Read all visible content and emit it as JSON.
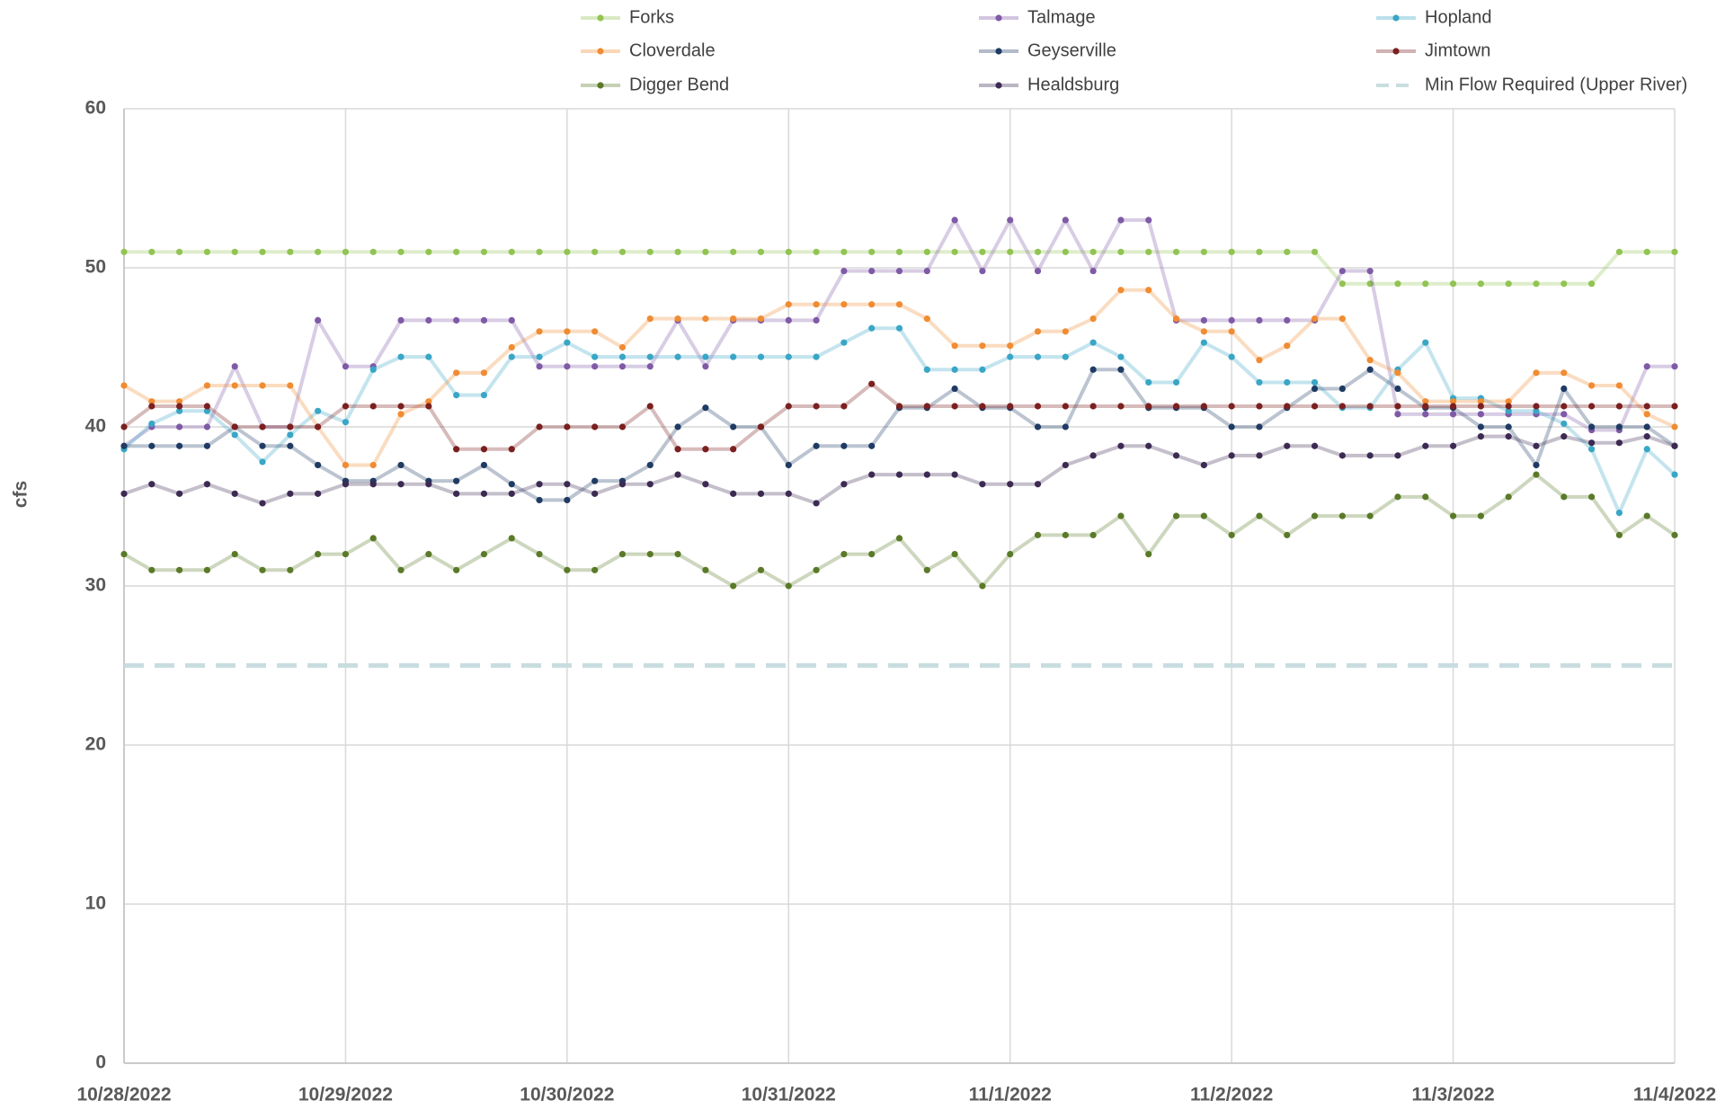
{
  "chart_data": {
    "type": "line",
    "y_label": "cfs",
    "categories": [
      "10/28/2022",
      null,
      null,
      null,
      null,
      null,
      null,
      null,
      "10/29/2022",
      null,
      null,
      null,
      null,
      null,
      null,
      null,
      "10/30/2022",
      null,
      null,
      null,
      null,
      null,
      null,
      null,
      "10/31/2022",
      null,
      null,
      null,
      null,
      null,
      null,
      null,
      "11/1/2022",
      null,
      null,
      null,
      null,
      null,
      null,
      null,
      "11/2/2022",
      null,
      null,
      null,
      null,
      null,
      null,
      null,
      "11/3/2022",
      null,
      null,
      null,
      null,
      null,
      null,
      null,
      "11/4/2022"
    ],
    "ylim": [
      0,
      60
    ],
    "yticks": [
      0,
      10,
      20,
      30,
      40,
      50,
      60
    ],
    "grid": true,
    "legend": "top",
    "series": [
      {
        "name": "Forks",
        "color": "#92c353",
        "values": [
          51,
          51,
          51,
          51,
          51,
          51,
          51,
          51,
          51,
          51,
          51,
          51,
          51,
          51,
          51,
          51,
          51,
          51,
          51,
          51,
          51,
          51,
          51,
          51,
          51,
          51,
          51,
          51,
          51,
          51,
          51,
          51,
          51,
          51,
          51,
          51,
          51,
          51,
          51,
          51,
          51,
          51,
          51,
          51,
          49,
          49,
          49,
          49,
          49,
          49,
          49,
          49,
          49,
          49,
          51,
          51,
          51
        ]
      },
      {
        "name": "Talmage",
        "color": "#7f5aa6",
        "values": [
          38.8,
          40,
          40,
          40,
          43.8,
          40,
          40,
          46.7,
          43.8,
          43.8,
          46.7,
          46.7,
          46.7,
          46.7,
          46.7,
          43.8,
          43.8,
          43.8,
          43.8,
          43.8,
          46.7,
          43.8,
          46.7,
          46.7,
          46.7,
          46.7,
          49.8,
          49.8,
          49.8,
          49.8,
          53,
          49.8,
          53,
          49.8,
          53,
          49.8,
          53,
          53,
          46.7,
          46.7,
          46.7,
          46.7,
          46.7,
          46.7,
          49.8,
          49.8,
          40.8,
          40.8,
          40.8,
          40.8,
          40.8,
          40.8,
          40.8,
          39.8,
          39.8,
          43.8,
          43.8
        ]
      },
      {
        "name": "Hopland",
        "color": "#3aa6c6",
        "values": [
          38.6,
          40.2,
          41,
          41,
          39.5,
          37.8,
          39.5,
          41,
          40.3,
          43.6,
          44.4,
          44.4,
          42,
          42,
          44.4,
          44.4,
          45.3,
          44.4,
          44.4,
          44.4,
          44.4,
          44.4,
          44.4,
          44.4,
          44.4,
          44.4,
          45.3,
          46.2,
          46.2,
          43.6,
          43.6,
          43.6,
          44.4,
          44.4,
          44.4,
          45.3,
          44.4,
          42.8,
          42.8,
          45.3,
          44.4,
          42.8,
          42.8,
          42.8,
          41.2,
          41.2,
          43.6,
          45.3,
          41.8,
          41.8,
          41,
          41,
          40.2,
          38.6,
          34.6,
          38.6,
          37
        ]
      },
      {
        "name": "Cloverdale",
        "color": "#f08c33",
        "values": [
          42.6,
          41.6,
          41.6,
          42.6,
          42.6,
          42.6,
          42.6,
          40,
          37.6,
          37.6,
          40.8,
          41.6,
          43.4,
          43.4,
          45,
          46,
          46,
          46,
          45,
          46.8,
          46.8,
          46.8,
          46.8,
          46.8,
          47.7,
          47.7,
          47.7,
          47.7,
          47.7,
          46.8,
          45.1,
          45.1,
          45.1,
          46,
          46,
          46.8,
          48.6,
          48.6,
          46.8,
          46,
          46,
          44.2,
          45.1,
          46.8,
          46.8,
          44.2,
          43.4,
          41.6,
          41.6,
          41.6,
          41.6,
          43.4,
          43.4,
          42.6,
          42.6,
          40.8,
          40
        ]
      },
      {
        "name": "Geyserville",
        "color": "#1f3b63",
        "values": [
          38.8,
          38.8,
          38.8,
          38.8,
          40,
          38.8,
          38.8,
          37.6,
          36.6,
          36.6,
          37.6,
          36.6,
          36.6,
          37.6,
          36.4,
          35.4,
          35.4,
          36.6,
          36.6,
          37.6,
          40,
          41.2,
          40,
          40,
          37.6,
          38.8,
          38.8,
          38.8,
          41.2,
          41.2,
          42.4,
          41.2,
          41.2,
          40,
          40,
          43.6,
          43.6,
          41.2,
          41.2,
          41.2,
          40,
          40,
          41.2,
          42.4,
          42.4,
          43.6,
          42.4,
          41.2,
          41.2,
          40,
          40,
          37.6,
          42.4,
          40,
          40,
          40,
          38.8
        ]
      },
      {
        "name": "Jimtown",
        "color": "#7b1f1f",
        "values": [
          40,
          41.3,
          41.3,
          41.3,
          40,
          40,
          40,
          40,
          41.3,
          41.3,
          41.3,
          41.3,
          38.6,
          38.6,
          38.6,
          40,
          40,
          40,
          40,
          41.3,
          38.6,
          38.6,
          38.6,
          40,
          41.3,
          41.3,
          41.3,
          42.7,
          41.3,
          41.3,
          41.3,
          41.3,
          41.3,
          41.3,
          41.3,
          41.3,
          41.3,
          41.3,
          41.3,
          41.3,
          41.3,
          41.3,
          41.3,
          41.3,
          41.3,
          41.3,
          41.3,
          41.3,
          41.3,
          41.3,
          41.3,
          41.3,
          41.3,
          41.3,
          41.3,
          41.3,
          41.3
        ]
      },
      {
        "name": "Digger Bend",
        "color": "#5a7a28",
        "values": [
          32,
          31,
          31,
          31,
          32,
          31,
          31,
          32,
          32,
          33,
          31,
          32,
          31,
          32,
          33,
          32,
          31,
          31,
          32,
          32,
          32,
          31,
          30,
          31,
          30,
          31,
          32,
          32,
          33,
          31,
          32,
          30,
          32,
          33.2,
          33.2,
          33.2,
          34.4,
          32,
          34.4,
          34.4,
          33.2,
          34.4,
          33.2,
          34.4,
          34.4,
          34.4,
          35.6,
          35.6,
          34.4,
          34.4,
          35.6,
          37,
          35.6,
          35.6,
          33.2,
          34.4,
          33.2
        ]
      },
      {
        "name": "Healdsburg",
        "color": "#3d2a52",
        "values": [
          35.8,
          36.4,
          35.8,
          36.4,
          35.8,
          35.2,
          35.8,
          35.8,
          36.4,
          36.4,
          36.4,
          36.4,
          35.8,
          35.8,
          35.8,
          36.4,
          36.4,
          35.8,
          36.4,
          36.4,
          37,
          36.4,
          35.8,
          35.8,
          35.8,
          35.2,
          36.4,
          37,
          37,
          37,
          37,
          36.4,
          36.4,
          36.4,
          37.6,
          38.2,
          38.8,
          38.8,
          38.2,
          37.6,
          38.2,
          38.2,
          38.8,
          38.8,
          38.2,
          38.2,
          38.2,
          38.8,
          38.8,
          39.4,
          39.4,
          38.8,
          39.4,
          39,
          39,
          39.4,
          38.8
        ]
      },
      {
        "name": "Min Flow Required (Upper River)",
        "color": "#c9dde0",
        "dashed": true,
        "values": [
          25,
          25,
          25,
          25,
          25,
          25,
          25,
          25,
          25,
          25,
          25,
          25,
          25,
          25,
          25,
          25,
          25,
          25,
          25,
          25,
          25,
          25,
          25,
          25,
          25,
          25,
          25,
          25,
          25,
          25,
          25,
          25,
          25,
          25,
          25,
          25,
          25,
          25,
          25,
          25,
          25,
          25,
          25,
          25,
          25,
          25,
          25,
          25,
          25,
          25,
          25,
          25,
          25,
          25,
          25,
          25,
          25
        ]
      }
    ]
  }
}
